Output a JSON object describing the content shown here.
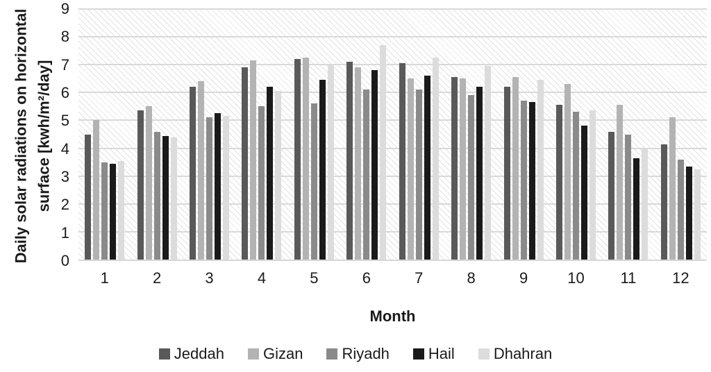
{
  "chart_data": {
    "type": "bar",
    "title": "",
    "xlabel": "Month",
    "ylabel_line1": "Daily solar radiations on horizontal",
    "ylabel_line2": "surface [kwh/m²/day]",
    "ylim": [
      0,
      9
    ],
    "yticks": [
      0,
      1,
      2,
      3,
      4,
      5,
      6,
      7,
      8,
      9
    ],
    "grid": "horizontal",
    "plot_background": "diagonal-hatch",
    "legend_position": "bottom",
    "gridline_color": "#d9d9d9",
    "categories": [
      "1",
      "2",
      "3",
      "4",
      "5",
      "6",
      "7",
      "8",
      "9",
      "10",
      "11",
      "12"
    ],
    "series": [
      {
        "name": "Jeddah",
        "color": "#595959",
        "values": [
          4.5,
          5.35,
          6.2,
          6.9,
          7.2,
          7.1,
          7.05,
          6.55,
          6.2,
          5.55,
          4.6,
          4.15
        ]
      },
      {
        "name": "Gizan",
        "color": "#b3b3b3",
        "values": [
          5.0,
          5.5,
          6.4,
          7.15,
          7.25,
          6.9,
          6.5,
          6.5,
          6.55,
          6.3,
          5.55,
          5.1
        ]
      },
      {
        "name": "Riyadh",
        "color": "#8a8a8a",
        "values": [
          3.5,
          4.6,
          5.1,
          5.5,
          5.6,
          6.1,
          6.1,
          5.9,
          5.7,
          5.3,
          4.5,
          3.6
        ]
      },
      {
        "name": "Hail",
        "color": "#1a1a1a",
        "values": [
          3.45,
          4.45,
          5.25,
          6.2,
          6.45,
          6.8,
          6.6,
          6.2,
          5.65,
          4.8,
          3.65,
          3.35
        ]
      },
      {
        "name": "Dhahran",
        "color": "#dcdcdc",
        "values": [
          3.55,
          4.4,
          5.15,
          6.05,
          7.0,
          7.7,
          7.25,
          6.95,
          6.45,
          5.35,
          4.0,
          3.25
        ]
      }
    ]
  }
}
